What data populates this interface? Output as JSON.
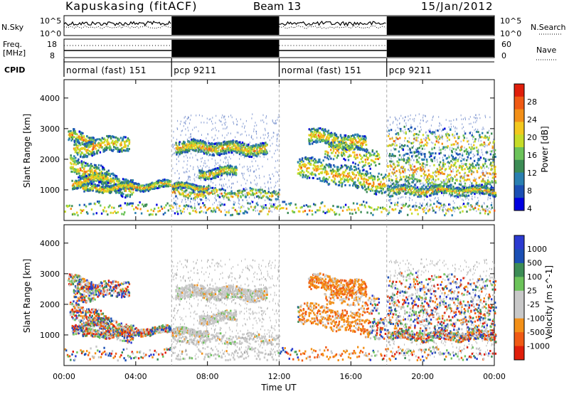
{
  "header": {
    "station": "Kapuskasing (fitACF)",
    "beam": "Beam 13",
    "date": "15/Jan/2012"
  },
  "noise_panel": {
    "left_label": "N.Sky",
    "right_label": "N.Search",
    "tick_top": "10^5",
    "tick_bottom": "10^0"
  },
  "freq_panel": {
    "left_label_1": "Freq.",
    "left_label_2": "[MHz]",
    "left_tick_top": "18",
    "left_tick_bottom": "8",
    "right_label": "Nave",
    "right_tick_top": "60",
    "right_tick_bottom": "0"
  },
  "cpid": {
    "label": "CPID",
    "segments": [
      {
        "label": "normal (fast) 151",
        "start_h": 0,
        "end_h": 6
      },
      {
        "label": "pcp 9211",
        "start_h": 6,
        "end_h": 12
      },
      {
        "label": "normal (fast) 151",
        "start_h": 12,
        "end_h": 18
      },
      {
        "label": "pcp 9211",
        "start_h": 18,
        "end_h": 24
      }
    ]
  },
  "colors": {
    "power": [
      "#0000e0",
      "#1b4fb4",
      "#2a7fb0",
      "#3c8c55",
      "#6cc35a",
      "#c6dc28",
      "#f3c81e",
      "#f39018",
      "#f05a14",
      "#e01e0a"
    ],
    "velocity": [
      "#e01e0a",
      "#f05a14",
      "#f39018",
      "#c8c8c8",
      "#c8c8c8",
      "#6cc35a",
      "#3c8c55",
      "#1b4fb4",
      "#2b3ad0"
    ]
  },
  "chart_data": [
    {
      "type": "heatmap",
      "name": "Power",
      "ylabel": "Slant Range [km]",
      "xlim_hours": [
        0,
        24
      ],
      "ylim_km": [
        0,
        4600
      ],
      "yticks": [
        1000,
        2000,
        3000,
        4000
      ],
      "colorbar_label": "Power [dB]",
      "colorbar_ticks": [
        "28",
        "24",
        "20",
        "16",
        "12",
        "8",
        "4"
      ],
      "colorbar_range_db": [
        0,
        30
      ]
    },
    {
      "type": "heatmap",
      "name": "Velocity",
      "xlabel": "Time UT",
      "ylabel": "Slant Range [km]",
      "xlim_hours": [
        0,
        24
      ],
      "ylim_km": [
        0,
        4600
      ],
      "yticks": [
        1000,
        2000,
        3000,
        4000
      ],
      "colorbar_label": "Velocity [m s^-1]",
      "colorbar_ticks": [
        "1000",
        "500",
        "100",
        "25",
        "-25",
        "-100",
        "-500",
        "-1000"
      ]
    }
  ],
  "x_axis": {
    "title": "Time UT",
    "ticks": [
      "00:00",
      "04:00",
      "08:00",
      "12:00",
      "16:00",
      "20:00",
      "00:00"
    ],
    "tick_hours": [
      0,
      4,
      8,
      12,
      16,
      20,
      24
    ]
  }
}
